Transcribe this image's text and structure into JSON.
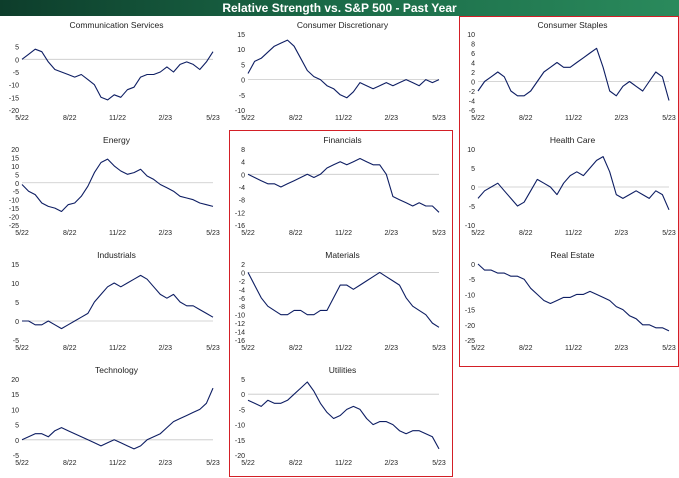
{
  "header": {
    "title": "Relative Strength vs. S&P 500 - Past Year"
  },
  "colors": {
    "line": "#0e1e63",
    "zero": "#c8c8c8",
    "highlight": "#d31f26",
    "banner": "#1b6b48"
  },
  "x_ticks": [
    "5/22",
    "8/22",
    "11/22",
    "2/23",
    "5/23"
  ],
  "highlight_groups": [
    {
      "name": "middle-column",
      "panels": [
        "Financials",
        "Materials",
        "Utilities"
      ]
    },
    {
      "name": "right-column",
      "panels": [
        "Consumer Staples",
        "Health Care",
        "Real Estate"
      ]
    }
  ],
  "chart_data": [
    {
      "type": "line",
      "title": "Communication Services",
      "ylim": [
        -20,
        10
      ],
      "yticks": [
        5,
        0,
        -5,
        -10,
        -15,
        -20
      ],
      "series": [
        {
          "values": [
            0,
            2,
            4,
            3,
            -1,
            -4,
            -5,
            -6,
            -7,
            -6,
            -8,
            -10,
            -15,
            -16,
            -14,
            -15,
            -12,
            -11,
            -7,
            -6,
            -6,
            -5,
            -3,
            -5,
            -2,
            -1,
            -2,
            -4,
            -1,
            3
          ]
        }
      ]
    },
    {
      "type": "line",
      "title": "Consumer Discretionary",
      "ylim": [
        -10,
        15
      ],
      "yticks": [
        15,
        10,
        5,
        0,
        -5,
        -10
      ],
      "series": [
        {
          "values": [
            2,
            6,
            7,
            9,
            11,
            12,
            13,
            11,
            7,
            3,
            1,
            0,
            -2,
            -3,
            -5,
            -6,
            -4,
            -1,
            -2,
            -3,
            -2,
            -1,
            -2,
            -1,
            0,
            -1,
            -2,
            0,
            -1,
            0
          ]
        }
      ]
    },
    {
      "type": "line",
      "title": "Consumer Staples",
      "ylim": [
        -6,
        10
      ],
      "yticks": [
        10,
        8,
        6,
        4,
        2,
        0,
        -2,
        -4,
        -6
      ],
      "series": [
        {
          "values": [
            -2,
            0,
            1,
            2,
            1,
            -2,
            -3,
            -3,
            -2,
            0,
            2,
            3,
            4,
            3,
            3,
            4,
            5,
            6,
            7,
            3,
            -2,
            -3,
            -1,
            0,
            -1,
            -2,
            0,
            2,
            1,
            -4
          ]
        }
      ]
    },
    {
      "type": "line",
      "title": "Energy",
      "ylim": [
        -25,
        20
      ],
      "yticks": [
        20,
        15,
        10,
        5,
        0,
        -5,
        -10,
        -15,
        -20,
        -25
      ],
      "series": [
        {
          "values": [
            -1,
            -5,
            -7,
            -12,
            -14,
            -15,
            -17,
            -13,
            -12,
            -8,
            -2,
            6,
            12,
            14,
            10,
            7,
            5,
            6,
            8,
            4,
            2,
            -1,
            -3,
            -5,
            -8,
            -9,
            -10,
            -12,
            -13,
            -14
          ]
        }
      ]
    },
    {
      "type": "line",
      "title": "Financials",
      "ylim": [
        -16,
        8
      ],
      "yticks": [
        8,
        4,
        0,
        -4,
        -8,
        -12,
        -16
      ],
      "series": [
        {
          "values": [
            0,
            -1,
            -2,
            -3,
            -3,
            -4,
            -3,
            -2,
            -1,
            0,
            -1,
            0,
            2,
            3,
            4,
            3,
            4,
            5,
            4,
            3,
            3,
            0,
            -7,
            -8,
            -9,
            -10,
            -9,
            -10,
            -10,
            -12
          ]
        }
      ]
    },
    {
      "type": "line",
      "title": "Health Care",
      "ylim": [
        -10,
        10
      ],
      "yticks": [
        10,
        5,
        0,
        -5,
        -10
      ],
      "series": [
        {
          "values": [
            -3,
            -1,
            0,
            1,
            -1,
            -3,
            -5,
            -4,
            -1,
            2,
            1,
            0,
            -2,
            1,
            3,
            4,
            3,
            5,
            7,
            8,
            4,
            -2,
            -3,
            -2,
            -1,
            -2,
            -3,
            -1,
            -2,
            -6
          ]
        }
      ]
    },
    {
      "type": "line",
      "title": "Industrials",
      "ylim": [
        -5,
        15
      ],
      "yticks": [
        15,
        10,
        5,
        0,
        -5
      ],
      "series": [
        {
          "values": [
            0,
            0,
            -1,
            -1,
            0,
            -1,
            -2,
            -1,
            0,
            1,
            2,
            5,
            7,
            9,
            10,
            9,
            10,
            11,
            12,
            11,
            9,
            7,
            6,
            7,
            5,
            4,
            4,
            3,
            2,
            1
          ]
        }
      ]
    },
    {
      "type": "line",
      "title": "Materials",
      "ylim": [
        -16,
        2
      ],
      "yticks": [
        2,
        0,
        -2,
        -4,
        -6,
        -8,
        -10,
        -12,
        -14,
        -16
      ],
      "series": [
        {
          "values": [
            0,
            -3,
            -6,
            -8,
            -9,
            -10,
            -10,
            -9,
            -9,
            -10,
            -10,
            -9,
            -9,
            -6,
            -3,
            -3,
            -4,
            -3,
            -2,
            -1,
            0,
            -1,
            -2,
            -3,
            -6,
            -8,
            -9,
            -10,
            -12,
            -13
          ]
        }
      ]
    },
    {
      "type": "line",
      "title": "Real Estate",
      "ylim": [
        -25,
        0
      ],
      "yticks": [
        0,
        -5,
        -10,
        -15,
        -20,
        -25
      ],
      "series": [
        {
          "values": [
            0,
            -2,
            -2,
            -3,
            -3,
            -4,
            -4,
            -5,
            -8,
            -10,
            -12,
            -13,
            -12,
            -11,
            -11,
            -10,
            -10,
            -9,
            -10,
            -11,
            -12,
            -14,
            -15,
            -17,
            -18,
            -20,
            -20,
            -21,
            -21,
            -22
          ]
        }
      ]
    },
    {
      "type": "line",
      "title": "Technology",
      "ylim": [
        -5,
        20
      ],
      "yticks": [
        20,
        15,
        10,
        5,
        0,
        -5
      ],
      "series": [
        {
          "values": [
            0,
            1,
            2,
            2,
            1,
            3,
            4,
            3,
            2,
            1,
            0,
            -1,
            -2,
            -1,
            0,
            -1,
            -2,
            -3,
            -2,
            0,
            1,
            2,
            4,
            6,
            7,
            8,
            9,
            10,
            12,
            17
          ]
        }
      ]
    },
    {
      "type": "line",
      "title": "Utilities",
      "ylim": [
        -20,
        5
      ],
      "yticks": [
        5,
        0,
        -5,
        -10,
        -15,
        -20
      ],
      "series": [
        {
          "values": [
            -2,
            -3,
            -4,
            -2,
            -3,
            -3,
            -2,
            0,
            2,
            4,
            1,
            -3,
            -6,
            -8,
            -7,
            -5,
            -4,
            -5,
            -8,
            -10,
            -9,
            -9,
            -10,
            -12,
            -13,
            -12,
            -12,
            -13,
            -14,
            -18
          ]
        }
      ]
    }
  ]
}
